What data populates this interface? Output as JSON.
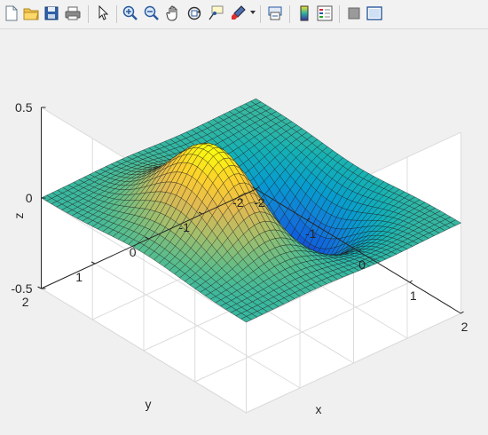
{
  "toolbar": {
    "buttons": [
      {
        "name": "new-figure-icon"
      },
      {
        "name": "open-file-icon"
      },
      {
        "name": "save-figure-icon"
      },
      {
        "name": "print-figure-icon"
      },
      {
        "name": "edit-plot-arrow-icon"
      },
      {
        "name": "zoom-in-icon"
      },
      {
        "name": "zoom-out-icon"
      },
      {
        "name": "pan-hand-icon"
      },
      {
        "name": "rotate-3d-icon"
      },
      {
        "name": "data-cursor-icon"
      },
      {
        "name": "brush-data-icon"
      },
      {
        "name": "link-plot-icon"
      },
      {
        "name": "insert-colorbar-icon"
      },
      {
        "name": "insert-legend-icon"
      },
      {
        "name": "hide-plot-tools-icon"
      },
      {
        "name": "show-plot-tools-icon"
      }
    ]
  },
  "chart_data": {
    "type": "surface",
    "function": "peaks-like: z = 0.5*(x*exp(-x^2-y^2)) rotated view, positive peak and negative trough",
    "xlabel": "x",
    "ylabel": "y",
    "zlabel": "z",
    "xlim": [
      -2,
      2
    ],
    "ylim": [
      -2,
      2
    ],
    "zlim": [
      -0.5,
      0.5
    ],
    "xticks": [
      "-2",
      "-1",
      "0",
      "1",
      "2"
    ],
    "yticks": [
      "-2",
      "-1",
      "0",
      "1",
      "2"
    ],
    "zticks": [
      "-0.5",
      "0",
      "0.5"
    ],
    "grid": true,
    "colormap": "parula",
    "view": {
      "azimuth": -37.5,
      "elevation": 30
    }
  }
}
